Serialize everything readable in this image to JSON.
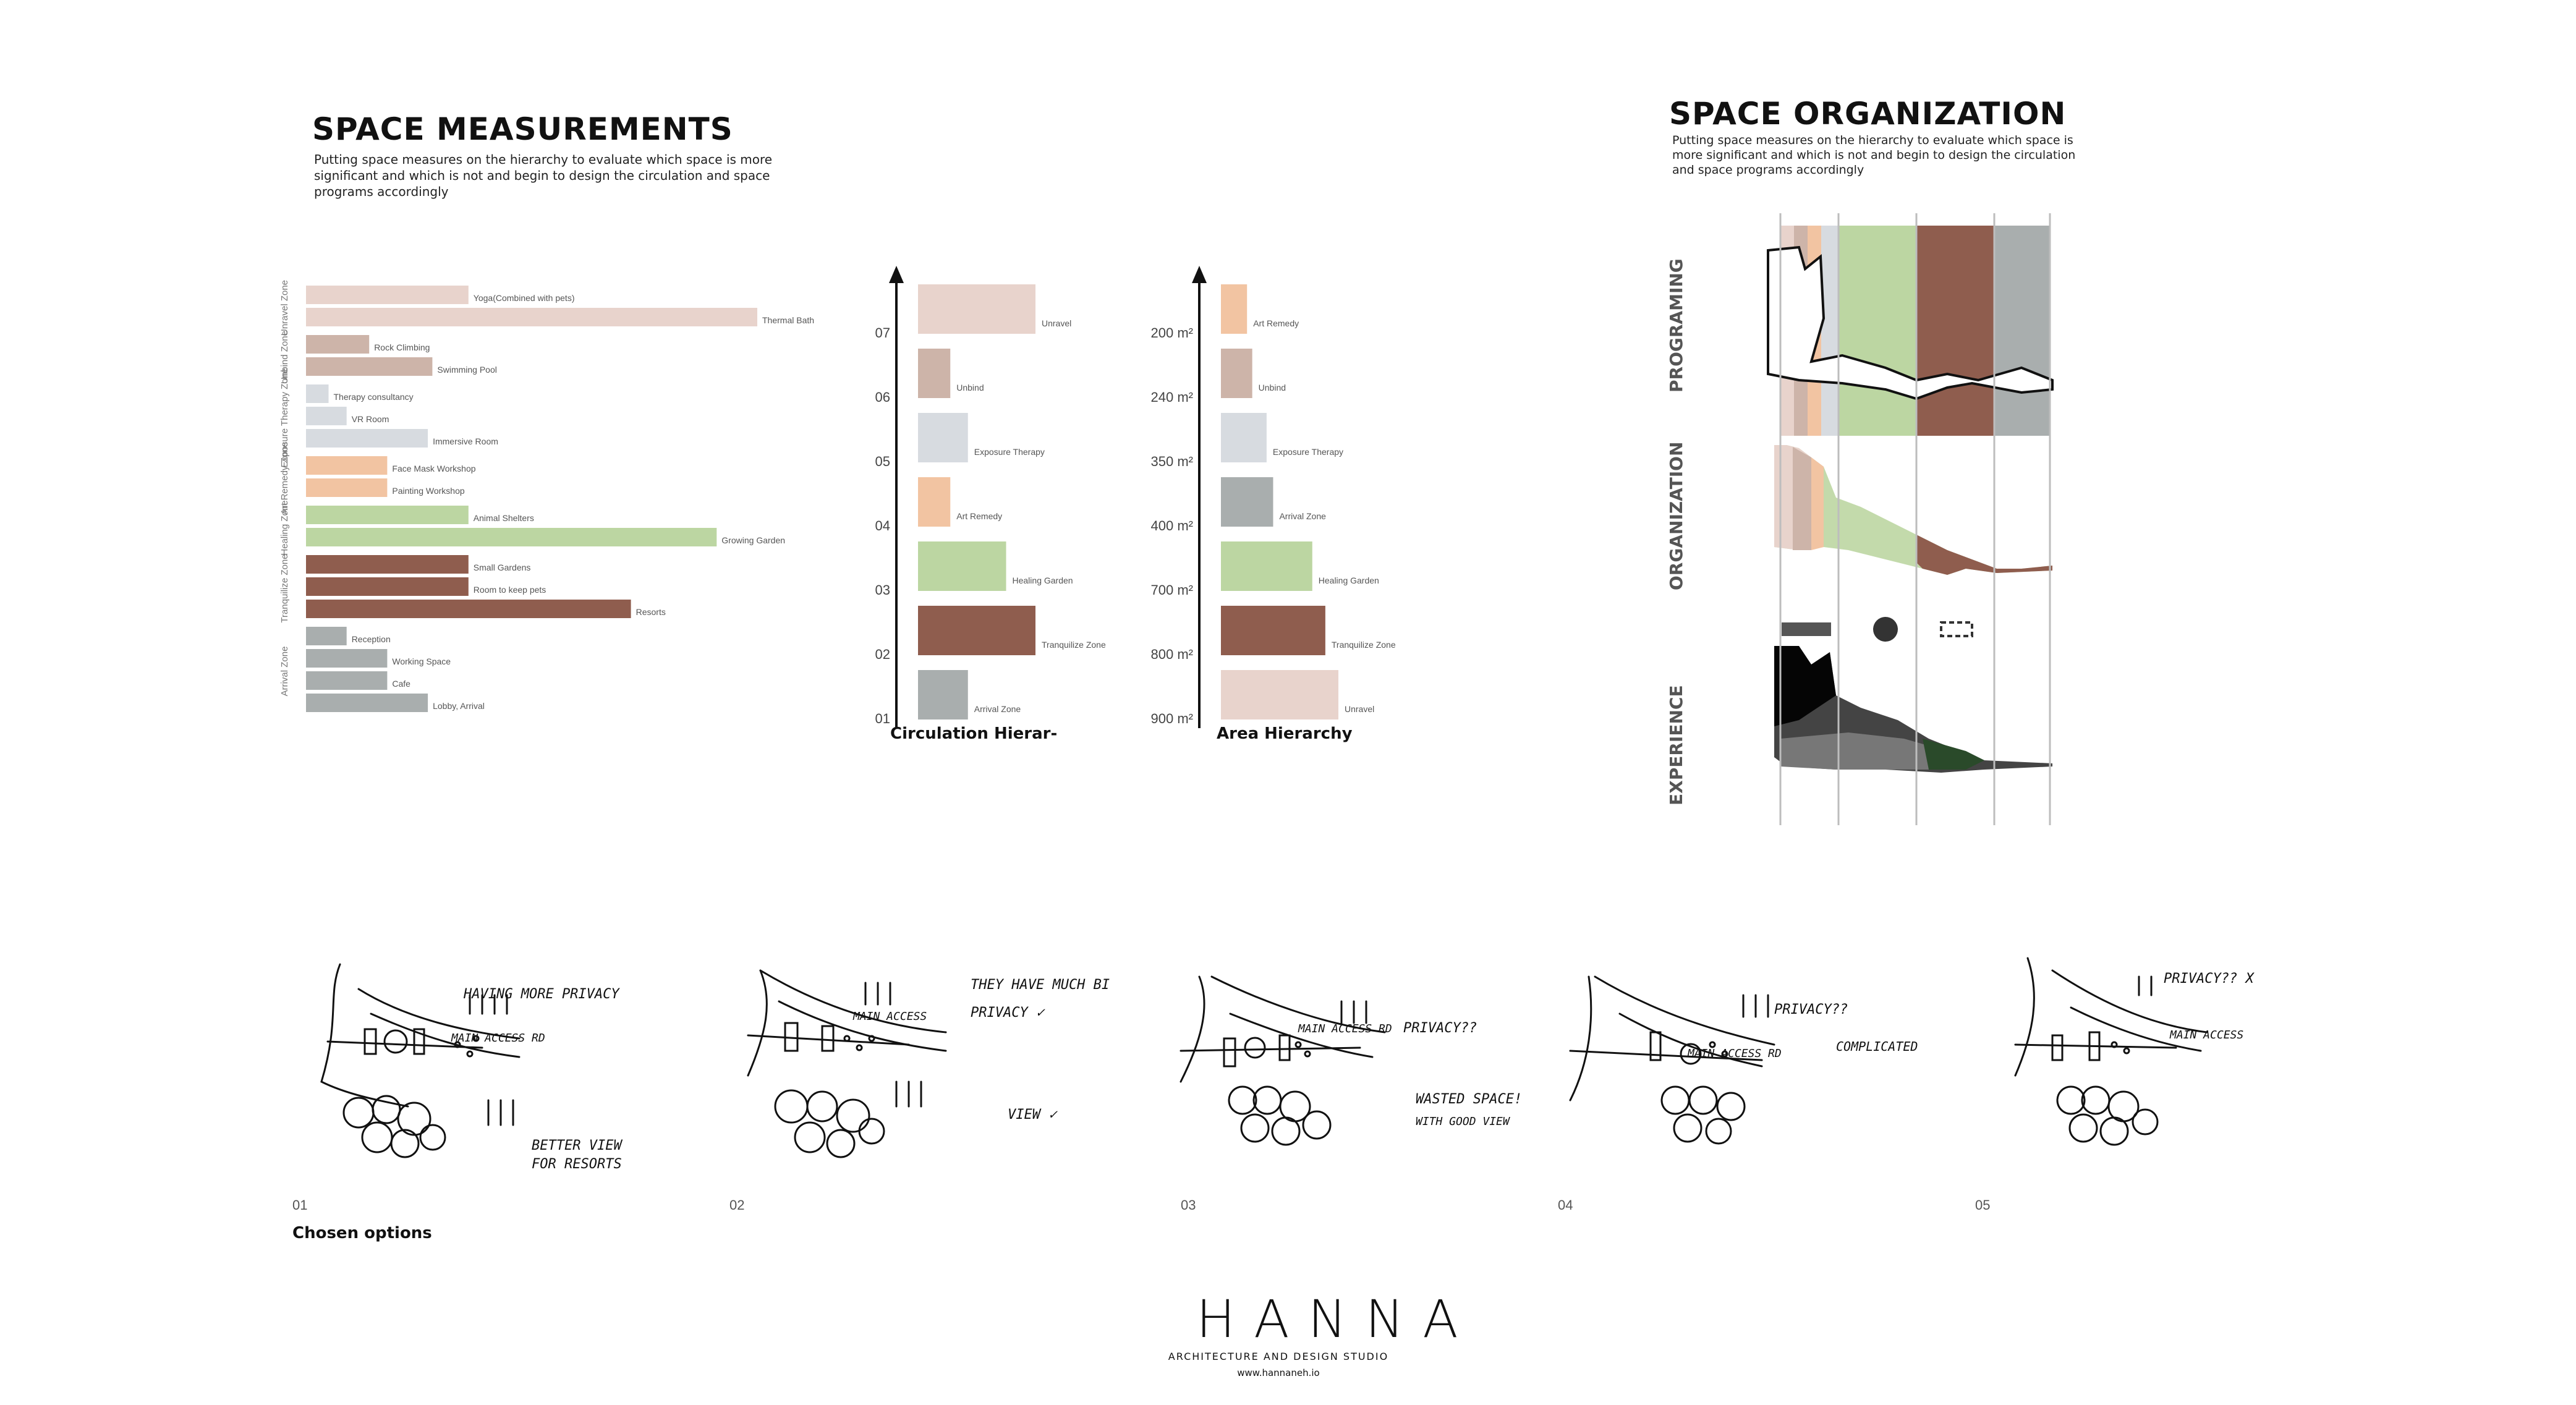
{
  "left": {
    "title": "SPACE MEASUREMENTS",
    "description": "Putting space measures on the hierarchy to evaluate which space is more significant and which is not and  begin to design the circulation and space programs accordingly"
  },
  "right": {
    "title": "SPACE ORGANIZATION",
    "description": "Putting space measures on the hierarchy to evaluate which space is more significant and which is not and  begin to design the circulation and space programs accordingly",
    "rows": [
      "PROGRAMING",
      "ORGANIZATION",
      "EXPERIENCE"
    ]
  },
  "colors": {
    "unravel": "#e8d3cc",
    "unbind": "#cdb4a9",
    "exposure": "#d7dbe0",
    "art": "#f2c4a2",
    "healing": "#bcd6a2",
    "tranquilize": "#8f5d4e",
    "arrival": "#a9aeae"
  },
  "chart_data": [
    {
      "type": "bar",
      "orientation": "horizontal",
      "zones": [
        {
          "name": "Unravel Zone",
          "color": "#e8d3cc",
          "items": [
            {
              "label": "Yoga(Combined with pets)",
              "value": 36
            },
            {
              "label": "Thermal Bath",
              "value": 100
            }
          ]
        },
        {
          "name": "Unbind Zone",
          "color": "#cdb4a9",
          "items": [
            {
              "label": "Rock Climbing",
              "value": 14
            },
            {
              "label": "Swimming Pool",
              "value": 28
            }
          ]
        },
        {
          "name": "Exposure Therapy Zone",
          "color": "#d7dbe0",
          "items": [
            {
              "label": "Therapy consultancy",
              "value": 5
            },
            {
              "label": "VR Room",
              "value": 9
            },
            {
              "label": "Immersive Room",
              "value": 27
            }
          ]
        },
        {
          "name": "Art Remedy Zone",
          "color": "#f2c4a2",
          "items": [
            {
              "label": "Face Mask Workshop",
              "value": 18
            },
            {
              "label": "Painting Workshop",
              "value": 18
            }
          ]
        },
        {
          "name": "Healing Zone",
          "color": "#bcd6a2",
          "items": [
            {
              "label": "Animal Shelters",
              "value": 36
            },
            {
              "label": "Growing Garden",
              "value": 91
            }
          ]
        },
        {
          "name": "Tranquilize Zone",
          "color": "#8f5d4e",
          "items": [
            {
              "label": "Small Gardens",
              "value": 36
            },
            {
              "label": "Room to keep pets",
              "value": 36
            },
            {
              "label": "Resorts",
              "value": 72
            }
          ]
        },
        {
          "name": "Arrival Zone",
          "color": "#a9aeae",
          "items": [
            {
              "label": "Reception",
              "value": 9
            },
            {
              "label": "Working Space",
              "value": 18
            },
            {
              "label": "Cafe",
              "value": 18
            },
            {
              "label": "Lobby, Arrival",
              "value": 27
            }
          ]
        }
      ]
    },
    {
      "type": "bar",
      "title": "Circulation Hierar-",
      "ticks": [
        "07",
        "06",
        "05",
        "04",
        "03",
        "02",
        "01"
      ],
      "bars": [
        {
          "label": "Unravel",
          "value": 4,
          "color": "#e8d3cc"
        },
        {
          "label": "Unbind",
          "value": 1.1,
          "color": "#cdb4a9"
        },
        {
          "label": "Exposure Therapy",
          "value": 1.7,
          "color": "#d7dbe0"
        },
        {
          "label": "Art Remedy",
          "value": 1.1,
          "color": "#f2c4a2"
        },
        {
          "label": "Healing Garden",
          "value": 3,
          "color": "#bcd6a2"
        },
        {
          "label": "Tranquilize Zone",
          "value": 4,
          "color": "#8f5d4e"
        },
        {
          "label": "Arrival Zone",
          "value": 1.7,
          "color": "#a9aeae"
        }
      ]
    },
    {
      "type": "bar",
      "title": "Area Hierarchy",
      "ticks": [
        "200 m²",
        "240 m²",
        "350 m²",
        "400 m²",
        "700 m²",
        "800 m²",
        "900 m²"
      ],
      "bars": [
        {
          "label": "Art Remedy",
          "value": 200,
          "color": "#f2c4a2"
        },
        {
          "label": "Unbind",
          "value": 240,
          "color": "#cdb4a9"
        },
        {
          "label": "Exposure Therapy",
          "value": 350,
          "color": "#d7dbe0"
        },
        {
          "label": "Arrival Zone",
          "value": 400,
          "color": "#a9aeae"
        },
        {
          "label": "Healing Garden",
          "value": 700,
          "color": "#bcd6a2"
        },
        {
          "label": "Tranquilize Zone",
          "value": 800,
          "color": "#8f5d4e"
        },
        {
          "label": "Unravel",
          "value": 900,
          "color": "#e8d3cc"
        }
      ]
    }
  ],
  "sketches": [
    {
      "num": "01",
      "notes": [
        "HAVING MORE PRIVACY",
        "MAIN ACCESS RD",
        "BETTER VIEW",
        "FOR RESORTS"
      ]
    },
    {
      "num": "02",
      "notes": [
        "THEY HAVE MUCH BI",
        "PRIVACY ✓",
        "MAIN ACCESS",
        "VIEW ✓"
      ]
    },
    {
      "num": "03",
      "notes": [
        "MAIN ACCESS RD",
        "PRIVACY??",
        "WASTED SPACE!",
        "WITH GOOD VIEW"
      ]
    },
    {
      "num": "04",
      "notes": [
        "PRIVACY??",
        "MAIN ACCESS RD",
        "COMPLICATED"
      ]
    },
    {
      "num": "05",
      "notes": [
        "PRIVACY?? X",
        "MAIN ACCESS"
      ]
    }
  ],
  "chosen_label": "Chosen options",
  "logo": {
    "name": "HANNA",
    "subtitle": "ARCHITECTURE AND DESIGN STUDIO",
    "url": "www.hannaneh.io"
  }
}
